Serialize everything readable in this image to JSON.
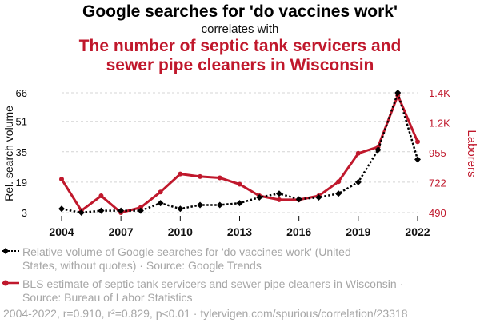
{
  "title": {
    "main": "Google searches for 'do vaccines work'",
    "connector": "correlates with",
    "second_line1": "The number of septic tank servicers and",
    "second_line2": "sewer pipe cleaners in Wisconsin"
  },
  "colors": {
    "series1": "#000000",
    "series2": "#c0182c",
    "muted_text": "#a6a6a6"
  },
  "chart_data": {
    "type": "line",
    "x": [
      2004,
      2005,
      2006,
      2007,
      2008,
      2009,
      2010,
      2011,
      2012,
      2013,
      2014,
      2015,
      2016,
      2017,
      2018,
      2019,
      2020,
      2021,
      2022
    ],
    "series": [
      {
        "name": "Relative volume of Google searches for 'do vaccines work'",
        "axis": "left",
        "style": "dotted",
        "marker": "diamond",
        "values": [
          5,
          3,
          4,
          4,
          4,
          8,
          5,
          7,
          7,
          8,
          11,
          13,
          10,
          11,
          13,
          19,
          36,
          66,
          31
        ]
      },
      {
        "name": "BLS estimate of septic tank servicers and sewer pipe cleaners in Wisconsin",
        "axis": "right",
        "style": "solid",
        "values": [
          750,
          505,
          620,
          490,
          530,
          650,
          790,
          770,
          760,
          710,
          620,
          590,
          590,
          620,
          730,
          950,
          1000,
          1400,
          1040
        ]
      }
    ],
    "left_axis": {
      "label": "Rel. search volume",
      "ticks": [
        3,
        19,
        35,
        51,
        66
      ],
      "range": [
        3,
        66
      ]
    },
    "right_axis": {
      "label": "Laborers",
      "ticks": [
        490,
        722,
        955,
        1187,
        1420
      ],
      "tick_labels": [
        "490",
        "722",
        "955",
        "1.2K",
        "1.4K"
      ],
      "range": [
        490,
        1420
      ]
    },
    "x_axis": {
      "ticks": [
        2004,
        2007,
        2010,
        2013,
        2016,
        2019,
        2022
      ],
      "tick_labels": [
        "2004",
        "2007",
        "2010",
        "2013",
        "2016",
        "2019",
        "2022"
      ]
    },
    "grid": "horizontal"
  },
  "legend": {
    "series1_line1": "Relative volume of Google searches for 'do vaccines work' (United",
    "series1_line2": "States, without quotes) · Source: Google Trends",
    "series2_line1": "BLS estimate of septic tank servicers and sewer pipe cleaners in Wisconsin ·",
    "series2_line2": "Source: Bureau of Labor Statistics"
  },
  "footer": "2004-2022, r=0.910, r²=0.829, p<0.01 · tylervigen.com/spurious/correlation/23318"
}
